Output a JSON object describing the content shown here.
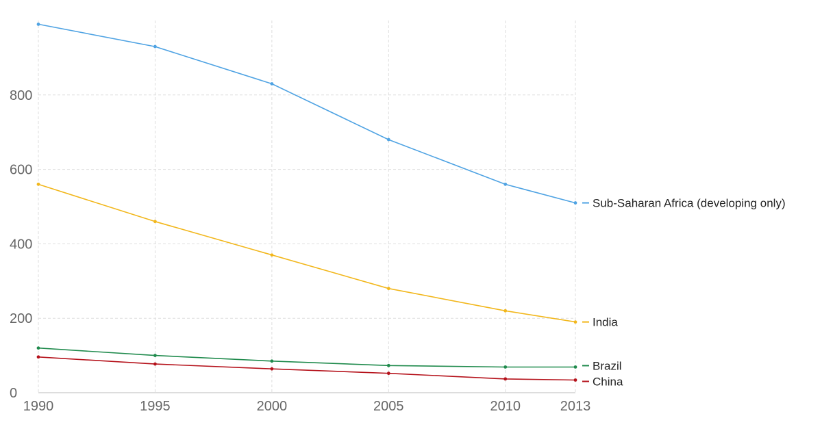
{
  "chart_data": {
    "type": "line",
    "title": "",
    "xlabel": "",
    "ylabel": "",
    "x": [
      1990,
      1995,
      2000,
      2005,
      2010,
      2013
    ],
    "x_tick_labels": [
      "1990",
      "1995",
      "2000",
      "2005",
      "2010",
      "2013"
    ],
    "y_ticks": [
      0,
      200,
      400,
      600,
      800
    ],
    "y_tick_labels": [
      "0",
      "200",
      "400",
      "600",
      "800"
    ],
    "ylim": [
      0,
      1000
    ],
    "grid": true,
    "legend": "inline-right",
    "series": [
      {
        "name": "Sub-Saharan Africa (developing only)",
        "color": "#4fa3e3",
        "values": [
          990,
          930,
          830,
          680,
          560,
          510
        ]
      },
      {
        "name": "India",
        "color": "#f2b71c",
        "values": [
          560,
          460,
          370,
          280,
          220,
          190
        ]
      },
      {
        "name": "Brazil",
        "color": "#1f8a4c",
        "values": [
          120,
          100,
          85,
          73,
          69,
          69
        ]
      },
      {
        "name": "China",
        "color": "#b5121b",
        "values": [
          96,
          77,
          64,
          52,
          37,
          34
        ]
      }
    ]
  }
}
